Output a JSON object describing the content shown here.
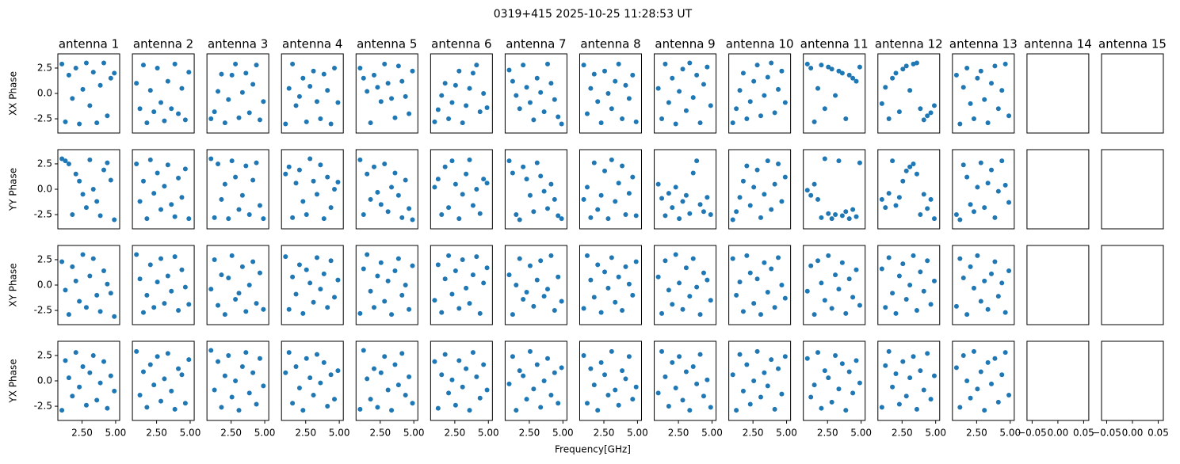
{
  "chart_data": {
    "type": "scatter",
    "title": "0319+415 2025-10-25 11:28:53 UT",
    "xlabel": "Frequency[GHz]",
    "antennas": [
      "antenna 1",
      "antenna 2",
      "antenna 3",
      "antenna 4",
      "antenna 5",
      "antenna 6",
      "antenna 7",
      "antenna 8",
      "antenna 9",
      "antenna 10",
      "antenna 11",
      "antenna 12",
      "antenna 13",
      "antenna 14",
      "antenna 15"
    ],
    "color": "#1f77b4",
    "x": [
      1.0,
      1.26,
      1.52,
      1.78,
      2.04,
      2.3,
      2.56,
      2.82,
      3.08,
      3.34,
      3.6,
      3.86,
      4.12,
      4.38,
      4.64,
      4.9
    ],
    "xlim": [
      0.7,
      5.3
    ],
    "xticks": [
      {
        "value": 2.5,
        "label": "2.50"
      },
      {
        "value": 5,
        "label": "5.00"
      }
    ],
    "ylim": [
      -3.9,
      3.9
    ],
    "yticks": [
      {
        "value": -2.5,
        "label": "-2.5"
      },
      {
        "value": 0,
        "label": "0.0"
      },
      {
        "value": 2.5,
        "label": "2.5"
      }
    ],
    "empty_xlim": [
      -0.06,
      0.06
    ],
    "empty_xticks": [
      {
        "value": -0.05,
        "label": "−0.05"
      },
      {
        "value": 0,
        "label": "0.00"
      },
      {
        "value": 0.05,
        "label": "0.05"
      }
    ],
    "series": [
      {
        "name": "XX Phase",
        "values": [
          [
            2.9,
            -2.8,
            1.8,
            -0.5,
            2.5,
            -3.0,
            0.4,
            3.0,
            -1.2,
            2.1,
            -2.9,
            0.8,
            3.0,
            -2.2,
            1.5,
            2.0
          ],
          [
            1.0,
            -1.5,
            2.8,
            -2.9,
            0.3,
            -1.8,
            2.5,
            -0.9,
            -2.7,
            1.2,
            -1.5,
            2.9,
            -2.0,
            0.5,
            -2.6,
            2.1
          ],
          [
            -2.5,
            -1.8,
            0.2,
            1.9,
            -2.9,
            -0.6,
            1.8,
            2.9,
            -2.4,
            0.1,
            2.0,
            -1.9,
            0.9,
            2.8,
            -2.6,
            -0.8
          ],
          [
            -3.0,
            0.5,
            2.9,
            -1.2,
            -0.3,
            1.5,
            -2.8,
            0.7,
            2.2,
            -0.8,
            -2.5,
            1.9,
            0.3,
            -3.0,
            2.5,
            -0.9
          ],
          [
            2.5,
            1.5,
            0.2,
            -2.9,
            1.8,
            0.6,
            -0.8,
            2.9,
            1.0,
            -0.5,
            -2.4,
            2.7,
            1.2,
            -0.3,
            -2.0,
            2.2
          ],
          [
            -2.8,
            -1.6,
            -0.2,
            1.0,
            -2.5,
            -0.9,
            0.8,
            2.2,
            -2.9,
            -1.2,
            0.5,
            2.0,
            2.8,
            -1.8,
            0.0,
            -1.4
          ],
          [
            2.3,
            1.2,
            -0.2,
            -1.5,
            2.8,
            0.6,
            -0.9,
            -2.6,
            1.5,
            0.1,
            -1.8,
            2.9,
            1.0,
            -0.6,
            -2.3,
            -3.0
          ],
          [
            2.8,
            -2.0,
            0.5,
            1.9,
            -0.8,
            -2.9,
            2.2,
            0.0,
            -1.5,
            1.2,
            2.9,
            -2.5,
            0.8,
            -0.5,
            1.8,
            -2.8
          ],
          [
            0.5,
            -2.5,
            2.9,
            -0.9,
            1.5,
            -3.0,
            0.2,
            2.4,
            -1.7,
            3.0,
            -0.4,
            1.8,
            -2.9,
            0.9,
            2.6,
            -1.2
          ],
          [
            -2.9,
            -1.5,
            0.3,
            2.0,
            -2.5,
            -0.8,
            1.2,
            2.8,
            -2.2,
            -0.2,
            1.6,
            3.0,
            -1.9,
            0.4,
            2.2,
            -0.9
          ],
          [
            2.9,
            2.5,
            -2.8,
            0.5,
            2.8,
            -1.5,
            2.6,
            2.4,
            -0.2,
            2.2,
            2.0,
            -2.5,
            1.8,
            1.5,
            1.2,
            2.6
          ],
          [
            -1.0,
            0.6,
            -2.5,
            1.5,
            2.0,
            -1.8,
            2.4,
            2.7,
            0.3,
            2.9,
            3.0,
            -1.5,
            -2.6,
            -2.2,
            -1.9,
            -1.2
          ],
          [
            1.8,
            -3.0,
            0.6,
            2.5,
            -1.0,
            -2.5,
            1.5,
            2.2,
            -0.6,
            -2.9,
            1.0,
            2.7,
            -1.5,
            0.3,
            2.9,
            -2.2
          ]
        ]
      },
      {
        "name": "YY Phase",
        "values": [
          [
            3.0,
            2.8,
            2.5,
            -2.5,
            1.5,
            0.8,
            -0.5,
            -1.8,
            2.9,
            0.0,
            -1.2,
            -2.6,
            1.9,
            2.6,
            0.9,
            -3.0
          ],
          [
            2.5,
            -1.2,
            0.8,
            -2.9,
            2.9,
            -0.4,
            1.6,
            -2.0,
            0.3,
            2.4,
            -1.5,
            -2.7,
            1.1,
            -0.8,
            2.0,
            -2.9
          ],
          [
            3.0,
            -2.8,
            2.5,
            -1.0,
            0.5,
            -2.9,
            2.8,
            1.2,
            -2.0,
            -0.6,
            2.3,
            -2.5,
            0.9,
            2.6,
            -1.6,
            -2.9
          ],
          [
            1.5,
            2.2,
            -2.8,
            0.6,
            1.9,
            -1.2,
            -2.5,
            3.0,
            0.8,
            -0.5,
            2.4,
            -2.9,
            1.2,
            -1.8,
            0.0,
            0.7
          ],
          [
            2.9,
            -2.5,
            1.5,
            -1.0,
            2.2,
            -0.3,
            -1.5,
            2.5,
            -2.2,
            0.2,
            1.6,
            -0.6,
            -2.8,
            0.9,
            -1.9,
            -3.0
          ],
          [
            0.2,
            1.0,
            -2.5,
            2.2,
            -1.8,
            2.8,
            0.5,
            -2.9,
            -0.5,
            1.5,
            2.9,
            -1.6,
            0.0,
            -2.4,
            1.0,
            0.6
          ],
          [
            2.8,
            1.6,
            -2.5,
            -3.0,
            2.2,
            1.0,
            -0.6,
            -2.2,
            2.6,
            1.3,
            -0.2,
            -1.9,
            0.5,
            -1.0,
            -2.6,
            -2.9
          ],
          [
            -1.0,
            0.2,
            -2.8,
            2.6,
            -2.0,
            -0.6,
            1.8,
            -2.9,
            2.9,
            -1.2,
            0.6,
            2.3,
            -2.5,
            -0.4,
            1.2,
            -2.6
          ],
          [
            0.5,
            -0.9,
            -2.6,
            -0.4,
            -1.8,
            0.2,
            -2.9,
            -1.2,
            -0.6,
            -2.4,
            1.6,
            2.8,
            -1.5,
            -2.2,
            -0.8,
            -2.5
          ],
          [
            -3.0,
            -2.2,
            -0.8,
            0.8,
            2.3,
            -1.6,
            0.2,
            1.9,
            -2.8,
            -0.5,
            2.8,
            -2.0,
            0.5,
            2.5,
            -1.2,
            1.2
          ],
          [
            -0.1,
            -0.6,
            0.5,
            -1.0,
            -2.8,
            3.0,
            -2.4,
            -2.9,
            -2.5,
            2.8,
            -2.6,
            -2.2,
            -2.9,
            -2.0,
            -2.7,
            2.6
          ],
          [
            -1.0,
            -1.8,
            -0.4,
            2.8,
            -1.6,
            -0.8,
            0.8,
            1.8,
            2.2,
            2.5,
            1.5,
            -2.5,
            -0.5,
            -1.9,
            -1.0,
            -2.9
          ],
          [
            -2.5,
            -3.0,
            2.4,
            1.2,
            -1.5,
            -2.2,
            0.2,
            2.6,
            -1.8,
            0.6,
            1.9,
            -2.8,
            -0.2,
            2.8,
            0.4,
            -1.3
          ]
        ]
      },
      {
        "name": "XY Phase",
        "values": [
          [
            2.3,
            -0.5,
            -2.9,
            1.8,
            0.4,
            -1.6,
            3.0,
            -2.2,
            0.9,
            2.6,
            -1.0,
            -2.6,
            1.4,
            0.1,
            -0.8,
            -3.1
          ],
          [
            3.0,
            0.6,
            -2.7,
            -1.0,
            2.0,
            -2.2,
            0.3,
            2.6,
            -1.8,
            0.9,
            -0.6,
            2.8,
            -2.5,
            1.5,
            -0.2,
            -1.9
          ],
          [
            -0.4,
            2.5,
            -2.0,
            1.0,
            -2.9,
            0.7,
            2.9,
            -1.4,
            -0.8,
            1.8,
            -2.6,
            0.0,
            2.3,
            -1.8,
            1.2,
            -2.4
          ],
          [
            2.8,
            -2.4,
            0.8,
            -0.9,
            2.0,
            -2.8,
            1.5,
            0.2,
            -1.7,
            2.7,
            -0.4,
            1.1,
            -2.2,
            2.4,
            -1.2,
            0.5
          ],
          [
            -2.8,
            1.6,
            3.0,
            -0.6,
            -2.2,
            0.9,
            2.2,
            -1.6,
            0.4,
            -2.9,
            1.4,
            2.6,
            -1.0,
            0.0,
            -2.4,
            1.9
          ],
          [
            -1.5,
            2.0,
            -2.7,
            0.6,
            2.9,
            -0.9,
            1.4,
            -2.3,
            2.5,
            -0.3,
            -1.8,
            1.0,
            2.8,
            -2.8,
            0.2,
            1.7
          ],
          [
            1.0,
            -2.9,
            0.0,
            2.6,
            -1.4,
            -0.7,
            1.9,
            -2.1,
            0.5,
            2.4,
            -1.1,
            -0.4,
            2.9,
            -2.5,
            0.8,
            -1.6
          ],
          [
            -2.3,
            2.9,
            0.5,
            -1.2,
            2.0,
            -2.7,
            1.3,
            -0.3,
            2.7,
            -1.7,
            0.8,
            -2.5,
            1.8,
            0.1,
            -1.0,
            2.3
          ],
          [
            0.8,
            -2.8,
            2.4,
            -0.5,
            -1.9,
            3.0,
            0.2,
            -2.4,
            1.7,
            -1.1,
            2.6,
            -0.2,
            -2.9,
            1.2,
            0.5,
            -1.5
          ],
          [
            2.6,
            -1.0,
            0.3,
            -2.6,
            2.9,
            1.2,
            -1.8,
            0.6,
            -2.9,
            2.2,
            -0.7,
            1.6,
            -2.2,
            2.7,
            0.0,
            -1.3
          ],
          [
            -0.6,
            1.9,
            -2.9,
            2.4,
            0.2,
            -1.5,
            2.9,
            -2.3,
            1.0,
            -0.4,
            2.2,
            -2.8,
            0.6,
            -1.2,
            1.5,
            -2.0
          ],
          [
            1.6,
            -2.2,
            2.7,
            -0.8,
            -2.8,
            0.9,
            2.1,
            -1.4,
            0.0,
            2.9,
            -2.5,
            1.3,
            -0.6,
            2.4,
            -1.9,
            0.4
          ],
          [
            -2.1,
            2.6,
            0.7,
            -2.9,
            1.8,
            -0.3,
            2.9,
            -1.6,
            0.4,
            -2.4,
            1.1,
            2.3,
            -1.1,
            0.2,
            -2.7,
            1.4
          ]
        ]
      },
      {
        "name": "YX Phase",
        "values": [
          [
            -2.9,
            2.0,
            0.3,
            -1.5,
            2.8,
            -0.6,
            1.4,
            -2.4,
            0.8,
            2.5,
            -1.9,
            -0.2,
            1.9,
            -2.7,
            0.5,
            -1.0
          ],
          [
            2.9,
            -1.4,
            0.9,
            -2.6,
            1.6,
            -0.4,
            2.4,
            -2.0,
            0.2,
            2.7,
            -1.0,
            -2.8,
            1.2,
            0.6,
            -2.2,
            2.1
          ],
          [
            3.0,
            -0.9,
            1.9,
            -2.6,
            0.5,
            2.5,
            -1.6,
            0.0,
            -2.9,
            1.4,
            2.8,
            -1.2,
            0.8,
            -2.3,
            2.2,
            -0.5
          ],
          [
            0.8,
            2.8,
            -2.2,
            1.4,
            -0.7,
            -2.9,
            2.2,
            0.3,
            -1.4,
            2.6,
            -0.2,
            1.8,
            -2.5,
            0.6,
            -1.8,
            1.0
          ],
          [
            -2.8,
            3.0,
            0.2,
            -1.8,
            1.2,
            -2.6,
            0.8,
            2.4,
            -0.9,
            -2.9,
            1.6,
            -0.4,
            2.7,
            -1.4,
            0.4,
            -2.2
          ],
          [
            1.9,
            -2.7,
            0.6,
            2.6,
            -1.2,
            0.1,
            -2.4,
            2.0,
            -0.6,
            1.2,
            -2.9,
            2.8,
            0.4,
            -1.7,
            1.6,
            -0.9
          ],
          [
            -0.3,
            2.4,
            -2.9,
            1.0,
            0.5,
            -1.8,
            2.9,
            -0.8,
            1.6,
            -2.6,
            0.0,
            2.2,
            -1.4,
            0.8,
            -2.2,
            1.3
          ],
          [
            2.5,
            -2.2,
            1.2,
            -0.4,
            -2.9,
            1.8,
            0.6,
            -1.4,
            2.9,
            -0.9,
            -2.4,
            1.0,
            0.2,
            2.4,
            -1.8,
            -0.6
          ],
          [
            -1.2,
            2.9,
            0.4,
            -2.5,
            1.8,
            -0.7,
            2.4,
            -1.9,
            0.9,
            -2.9,
            1.4,
            -0.3,
            2.6,
            -1.5,
            0.1,
            -2.6
          ],
          [
            0.6,
            -2.9,
            2.6,
            -1.0,
            1.6,
            -2.3,
            0.0,
            2.9,
            -1.6,
            0.8,
            -0.5,
            2.1,
            -2.8,
            1.2,
            -1.3,
            2.4
          ],
          [
            2.2,
            -1.6,
            -0.4,
            2.8,
            -2.7,
            1.0,
            0.3,
            -2.1,
            2.5,
            -0.8,
            1.7,
            -2.9,
            0.9,
            -1.2,
            2.0,
            -0.2
          ],
          [
            -2.6,
            1.5,
            2.9,
            -0.6,
            0.7,
            -2.3,
            1.9,
            -1.5,
            0.3,
            2.4,
            -2.8,
            1.0,
            -0.9,
            2.7,
            -1.8,
            0.5
          ],
          [
            1.3,
            -2.6,
            2.5,
            0.0,
            -1.7,
            2.9,
            -0.8,
            0.9,
            -2.9,
            1.8,
            -0.3,
            2.2,
            -2.1,
            0.6,
            2.8,
            -1.4
          ]
        ]
      }
    ]
  }
}
